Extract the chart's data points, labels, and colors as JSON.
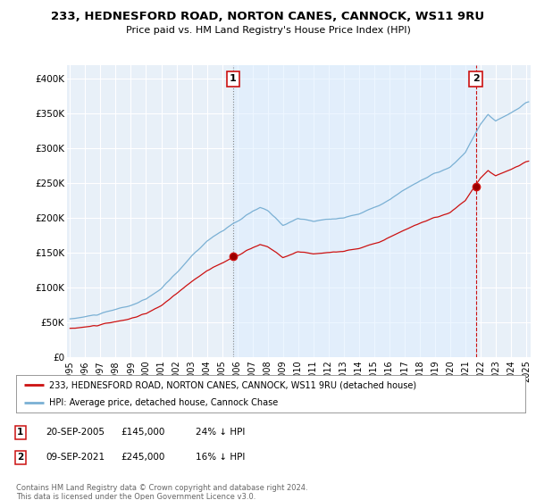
{
  "title": "233, HEDNESFORD ROAD, NORTON CANES, CANNOCK, WS11 9RU",
  "subtitle": "Price paid vs. HM Land Registry's House Price Index (HPI)",
  "ylabel_ticks": [
    "£0",
    "£50K",
    "£100K",
    "£150K",
    "£200K",
    "£250K",
    "£300K",
    "£350K",
    "£400K"
  ],
  "ytick_values": [
    0,
    50000,
    100000,
    150000,
    200000,
    250000,
    300000,
    350000,
    400000
  ],
  "ylim": [
    0,
    420000
  ],
  "xlim_start": 1994.8,
  "xlim_end": 2025.3,
  "hpi_color": "#7ab0d4",
  "price_color": "#cc1111",
  "marker1_date": 2005.72,
  "marker1_price": 145000,
  "marker1_label": "1",
  "marker2_date": 2021.69,
  "marker2_price": 245000,
  "marker2_label": "2",
  "shade_color": "#ddeeff",
  "legend_line1": "233, HEDNESFORD ROAD, NORTON CANES, CANNOCK, WS11 9RU (detached house)",
  "legend_line2": "HPI: Average price, detached house, Cannock Chase",
  "table_row1": [
    "1",
    "20-SEP-2005",
    "£145,000",
    "24% ↓ HPI"
  ],
  "table_row2": [
    "2",
    "09-SEP-2021",
    "£245,000",
    "16% ↓ HPI"
  ],
  "footnote": "Contains HM Land Registry data © Crown copyright and database right 2024.\nThis data is licensed under the Open Government Licence v3.0.",
  "background_color": "#ffffff",
  "plot_bg_color": "#e8f0f8"
}
